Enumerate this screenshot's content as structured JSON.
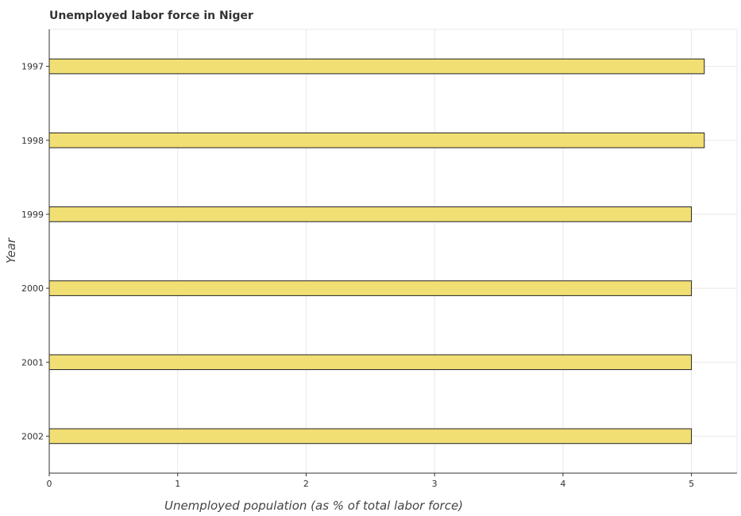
{
  "chart_data": {
    "type": "bar",
    "orientation": "horizontal",
    "title": "Unemployed labor force in Niger",
    "xlabel": "Unemployed population (as % of total labor force)",
    "ylabel": "Year",
    "categories": [
      "1997",
      "1998",
      "1999",
      "2000",
      "2001",
      "2002"
    ],
    "values": [
      5.1,
      5.1,
      5.0,
      5.0,
      5.0,
      5.0
    ],
    "xlim": [
      0,
      5.355
    ],
    "xticks": [
      "0",
      "1",
      "2",
      "3",
      "4",
      "5"
    ],
    "grid": true,
    "bar_color": "#f2df74"
  }
}
